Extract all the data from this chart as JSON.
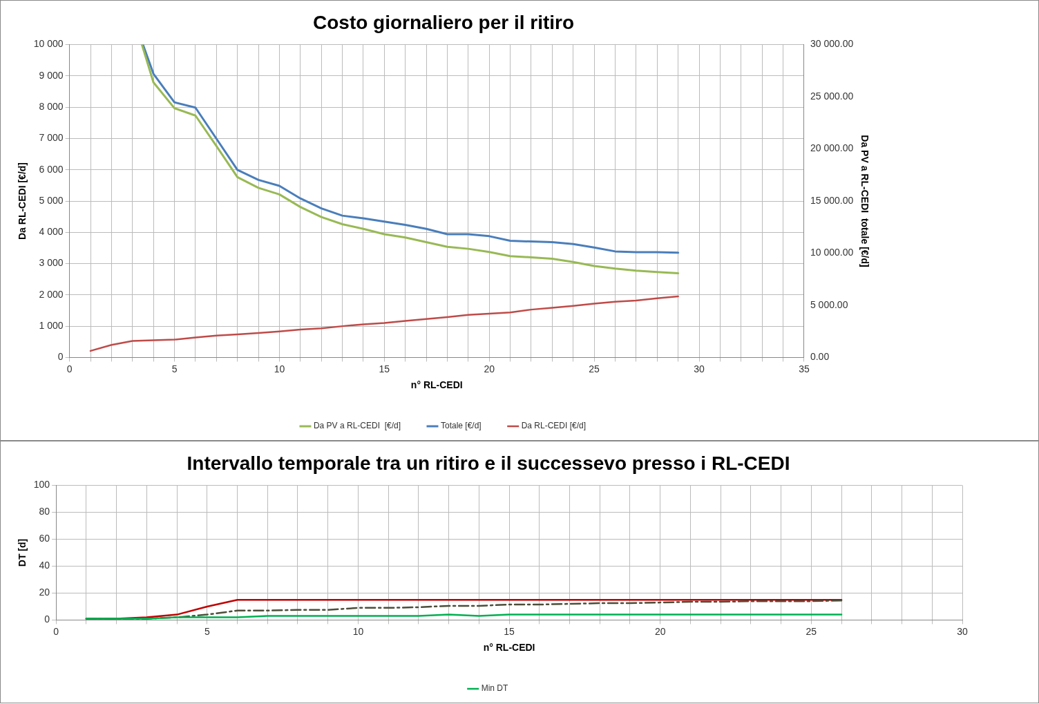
{
  "chart_data": [
    {
      "type": "line",
      "title": "Costo giornaliero per il ritiro",
      "xlabel": "n° RL-CEDI",
      "ylabel": "Da RL-CEDI [€/d]",
      "y2label": "Da PV a RL-CEDI  totale [€/d]",
      "xlim": [
        0,
        35
      ],
      "xticks": [
        0,
        {
          "value": 1,
          "label": null
        },
        {
          "value": 2,
          "label": null
        },
        {
          "value": 3,
          "label": null
        },
        {
          "value": 4,
          "label": null
        },
        5,
        {
          "value": 6,
          "label": null
        },
        {
          "value": 7,
          "label": null
        },
        {
          "value": 8,
          "label": null
        },
        {
          "value": 9,
          "label": null
        },
        10,
        {
          "value": 11,
          "label": null
        },
        {
          "value": 12,
          "label": null
        },
        {
          "value": 13,
          "label": null
        },
        {
          "value": 14,
          "label": null
        },
        15,
        {
          "value": 16,
          "label": null
        },
        {
          "value": 17,
          "label": null
        },
        {
          "value": 18,
          "label": null
        },
        {
          "value": 19,
          "label": null
        },
        20,
        {
          "value": 21,
          "label": null
        },
        {
          "value": 22,
          "label": null
        },
        {
          "value": 23,
          "label": null
        },
        {
          "value": 24,
          "label": null
        },
        25,
        {
          "value": 26,
          "label": null
        },
        {
          "value": 27,
          "label": null
        },
        {
          "value": 28,
          "label": null
        },
        {
          "value": 29,
          "label": null
        },
        30,
        {
          "value": 31,
          "label": null
        },
        {
          "value": 32,
          "label": null
        },
        {
          "value": 33,
          "label": null
        },
        {
          "value": 34,
          "label": null
        },
        35
      ],
      "ylim": [
        0,
        10000
      ],
      "yticks": [
        0,
        {
          "value": 1000,
          "label": "1 000"
        },
        {
          "value": 2000,
          "label": "2 000"
        },
        {
          "value": 3000,
          "label": "3 000"
        },
        {
          "value": 4000,
          "label": "4 000"
        },
        {
          "value": 5000,
          "label": "5 000"
        },
        {
          "value": 6000,
          "label": "6 000"
        },
        {
          "value": 7000,
          "label": "7 000"
        },
        {
          "value": 8000,
          "label": "8 000"
        },
        {
          "value": 9000,
          "label": "9 000"
        },
        {
          "value": 10000,
          "label": "10 000"
        }
      ],
      "y2lim": [
        0,
        30000
      ],
      "y2ticks": [
        {
          "value": 0,
          "label": "0.00"
        },
        {
          "value": 5000,
          "label": "5 000.00"
        },
        {
          "value": 10000,
          "label": "10 000.00"
        },
        {
          "value": 15000,
          "label": "15 000.00"
        },
        {
          "value": 20000,
          "label": "20 000.00"
        },
        {
          "value": 25000,
          "label": "25 000.00"
        },
        {
          "value": 30000,
          "label": "30 000.00"
        }
      ],
      "grid": true,
      "legend": "bottom",
      "marker": "none",
      "series": [
        {
          "name": "Da RL-CEDI [€/d]",
          "color": "#be4b48",
          "x": [
            1,
            2,
            3,
            4,
            5,
            6,
            7,
            8,
            9,
            10,
            11,
            12,
            13,
            14,
            15,
            16,
            17,
            18,
            19,
            20,
            21,
            22,
            23,
            24,
            25,
            26,
            27,
            28,
            29
          ],
          "values": [
            210,
            400,
            530,
            550,
            570,
            640,
            700,
            740,
            780,
            830,
            890,
            930,
            1000,
            1060,
            1100,
            1170,
            1230,
            1290,
            1360,
            1400,
            1440,
            1530,
            1590,
            1650,
            1720,
            1780,
            1820,
            1890,
            1950
          ]
        },
        {
          "name": "Totale [€/d]",
          "color": "#4a7ebb",
          "axis": "y2",
          "x": [
            3.5,
            4,
            5,
            6,
            7,
            8,
            9,
            10,
            11,
            12,
            13,
            14,
            15,
            16,
            17,
            18,
            19,
            20,
            21,
            22,
            23,
            24,
            25,
            26,
            27,
            28,
            29
          ],
          "values": [
            30000,
            27200,
            24470,
            23960,
            20980,
            17990,
            17030,
            16460,
            15250,
            14300,
            13600,
            13350,
            13030,
            12710,
            12330,
            11820,
            11820,
            11630,
            11190,
            11120,
            11060,
            10870,
            10550,
            10170,
            10100,
            10100,
            10040
          ]
        },
        {
          "name": "Da PV a RL-CEDI  [€/d]",
          "color": "#98b954",
          "axis": "y2",
          "x": [
            3.45,
            4,
            5,
            6,
            7,
            8,
            9,
            10,
            11,
            12,
            13,
            14,
            15,
            16,
            17,
            18,
            19,
            20,
            21,
            22,
            23,
            24,
            25,
            26,
            27,
            28,
            29
          ],
          "values": [
            30000,
            26380,
            23900,
            23200,
            20280,
            17290,
            16270,
            15640,
            14430,
            13470,
            12780,
            12330,
            11820,
            11500,
            11060,
            10610,
            10420,
            10110,
            9720,
            9600,
            9470,
            9150,
            8770,
            8520,
            8330,
            8200,
            8070
          ]
        }
      ]
    },
    {
      "type": "line",
      "title": "Intervallo temporale tra un ritiro e il successevo presso i RL-CEDI",
      "xlabel": "n° RL-CEDI",
      "ylabel": "DT [d]",
      "xlim": [
        0,
        30
      ],
      "xticks": [
        0,
        {
          "value": 1,
          "label": null
        },
        {
          "value": 2,
          "label": null
        },
        {
          "value": 3,
          "label": null
        },
        {
          "value": 4,
          "label": null
        },
        5,
        {
          "value": 6,
          "label": null
        },
        {
          "value": 7,
          "label": null
        },
        {
          "value": 8,
          "label": null
        },
        {
          "value": 9,
          "label": null
        },
        10,
        {
          "value": 11,
          "label": null
        },
        {
          "value": 12,
          "label": null
        },
        {
          "value": 13,
          "label": null
        },
        {
          "value": 14,
          "label": null
        },
        15,
        {
          "value": 16,
          "label": null
        },
        {
          "value": 17,
          "label": null
        },
        {
          "value": 18,
          "label": null
        },
        {
          "value": 19,
          "label": null
        },
        20,
        {
          "value": 21,
          "label": null
        },
        {
          "value": 22,
          "label": null
        },
        {
          "value": 23,
          "label": null
        },
        {
          "value": 24,
          "label": null
        },
        25,
        {
          "value": 26,
          "label": null
        },
        {
          "value": 27,
          "label": null
        },
        {
          "value": 28,
          "label": null
        },
        {
          "value": 29,
          "label": null
        },
        30
      ],
      "ylim": [
        0,
        100
      ],
      "yticks": [
        0,
        20,
        40,
        60,
        80,
        100
      ],
      "grid": true,
      "legend": "bottom",
      "marker": "none",
      "series": [
        {
          "color": "#c00000",
          "x": [
            1,
            2,
            3,
            4,
            5,
            6,
            7,
            8,
            9,
            10,
            11,
            12,
            13,
            14,
            15,
            16,
            17,
            18,
            19,
            20,
            21,
            22,
            23,
            24,
            25,
            26
          ],
          "values": [
            1,
            1,
            2,
            4,
            10,
            15,
            15,
            15,
            15,
            15,
            15,
            15,
            15,
            15,
            15,
            15,
            15,
            15,
            15,
            15,
            15,
            15,
            15,
            15,
            15,
            15
          ]
        },
        {
          "color": "#4d4d3a",
          "line_style": "dashed",
          "x": [
            1,
            2,
            3,
            4,
            5,
            6,
            7,
            8,
            9,
            10,
            11,
            12,
            13,
            14,
            15,
            16,
            17,
            18,
            19,
            20,
            21,
            22,
            23,
            24,
            25,
            26
          ],
          "values": [
            1,
            1,
            1,
            2,
            4,
            7,
            7,
            7.5,
            7.5,
            9,
            9,
            9.5,
            10.5,
            10.5,
            11.5,
            11.5,
            12,
            12.5,
            12.5,
            13,
            13.5,
            13.5,
            14,
            14,
            14,
            14.5
          ]
        },
        {
          "name": "Min DT",
          "color": "#00b050",
          "x": [
            1,
            2,
            3,
            4,
            5,
            6,
            7,
            8,
            9,
            10,
            11,
            12,
            13,
            14,
            15,
            16,
            17,
            18,
            19,
            20,
            21,
            22,
            23,
            24,
            25,
            26
          ],
          "values": [
            1,
            1,
            1,
            2,
            2,
            2,
            3,
            3,
            3,
            3,
            3,
            3,
            4,
            3,
            4,
            4,
            4,
            4,
            4,
            4,
            4,
            4,
            4,
            4,
            4,
            4
          ]
        }
      ]
    }
  ]
}
